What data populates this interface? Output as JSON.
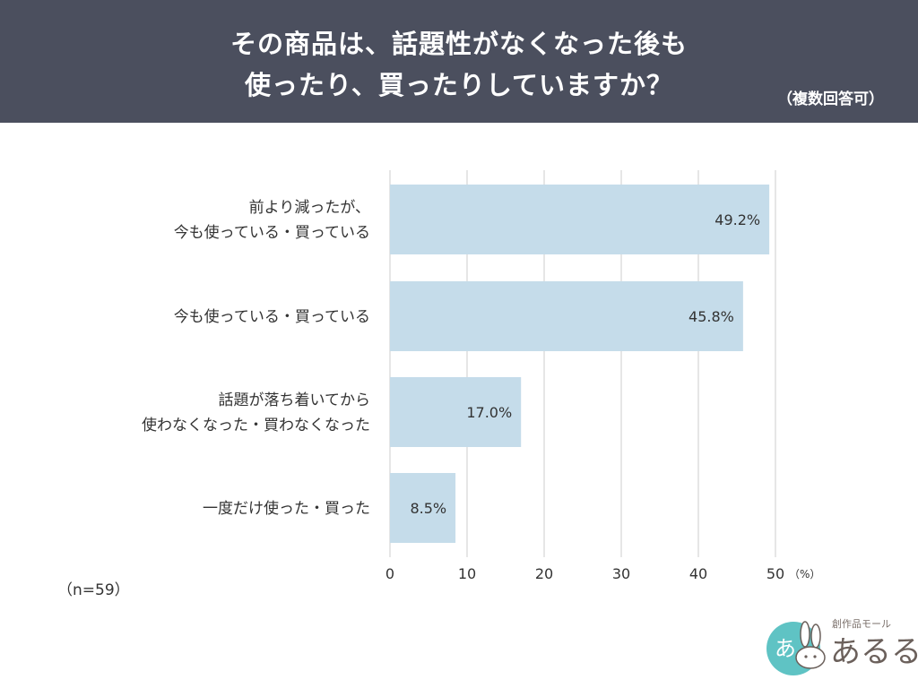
{
  "header": {
    "title_line1": "その商品は、話題性がなくなった後も",
    "title_line2": "使ったり、買ったりしていますか？",
    "subtitle": "（複数回答可）"
  },
  "chart_data": {
    "type": "bar",
    "orientation": "horizontal",
    "categories": [
      [
        "前より減ったが、",
        "今も使っている・買っている"
      ],
      [
        "今も使っている・買っている"
      ],
      [
        "話題が落ち着いてから",
        "使わなくなった・買わなくなった"
      ],
      [
        "一度だけ使った・買った"
      ]
    ],
    "values": [
      49.2,
      45.8,
      17.0,
      8.5
    ],
    "value_labels": [
      "49.2%",
      "45.8%",
      "17.0%",
      "8.5%"
    ],
    "xlim": [
      0,
      50
    ],
    "xticks": [
      "0",
      "10",
      "20",
      "30",
      "40",
      "50"
    ],
    "xunit": "（%）",
    "grid": true,
    "bar_color": "#c5dcea",
    "grid_color": "#cccccc"
  },
  "footnote": "（n=59）",
  "logo": {
    "icon": "rabbit-logo-icon",
    "tagline": "創作品モール",
    "name": "あるる",
    "mark_text": "あ"
  }
}
